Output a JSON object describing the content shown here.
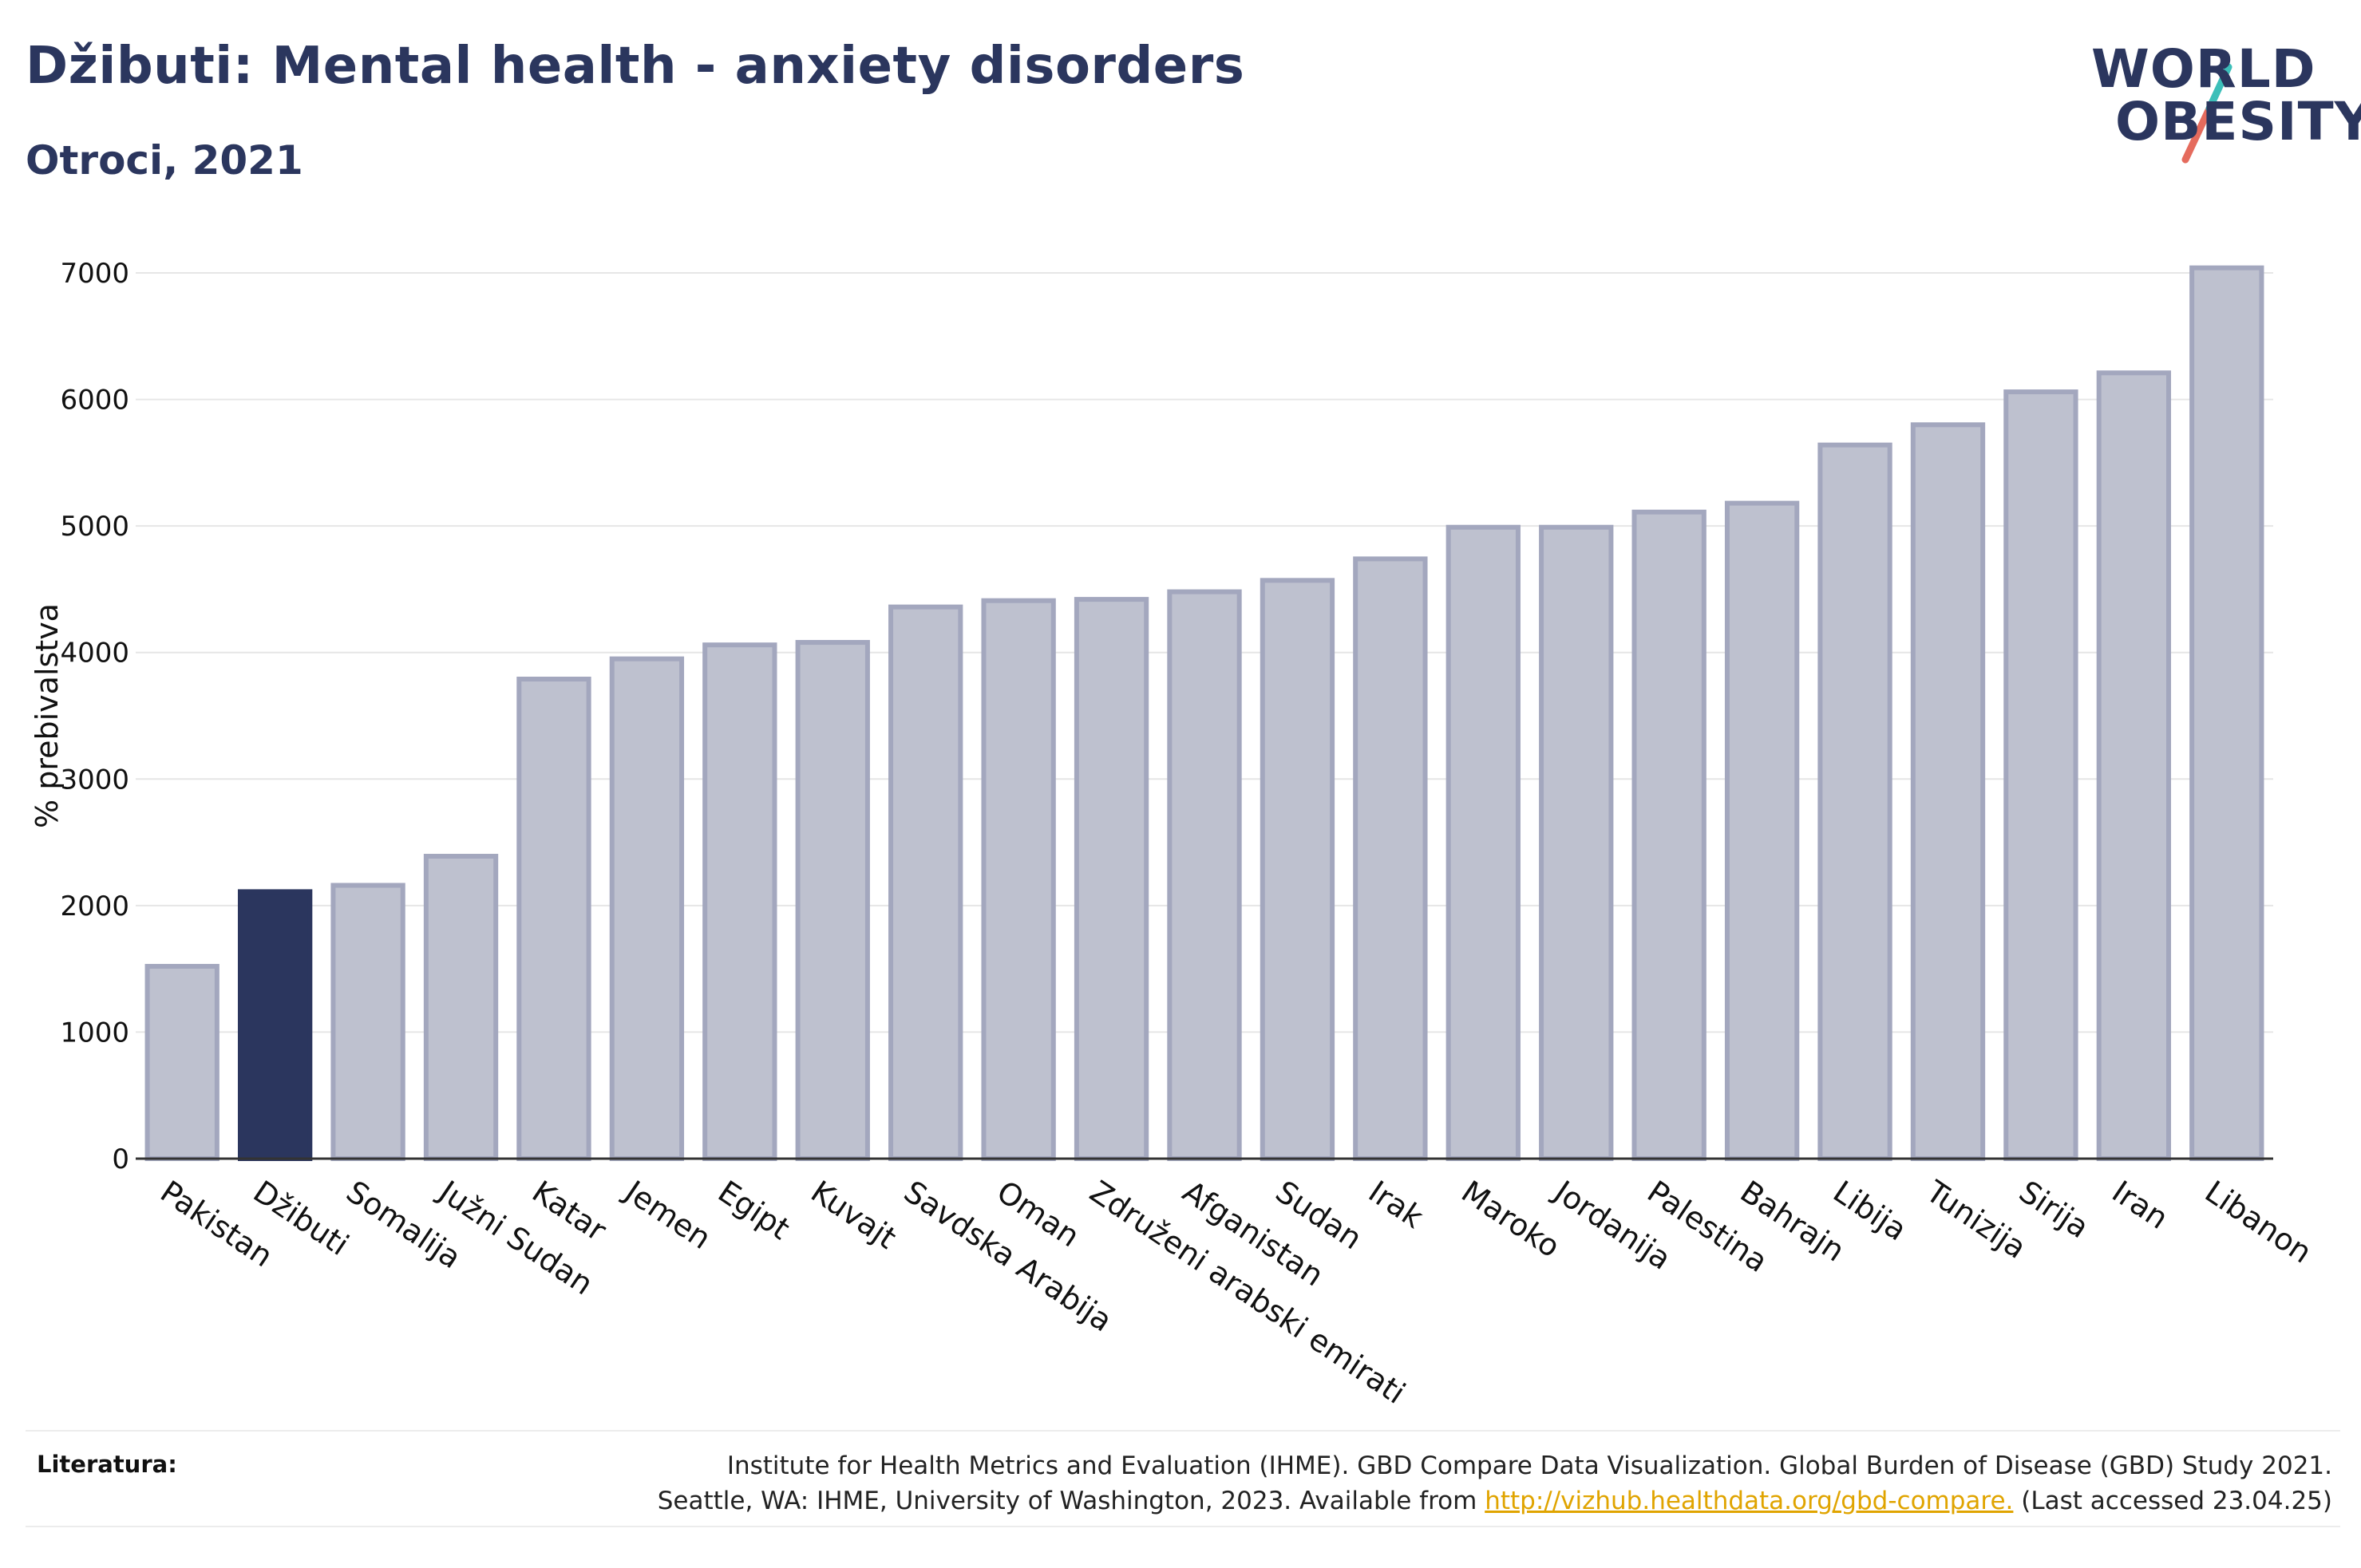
{
  "header": {
    "title": "Džibuti: Mental health - anxiety disorders",
    "subtitle": "Otroci, 2021"
  },
  "logo": {
    "line1": "WORLD",
    "line2": "OBESITY"
  },
  "colors": {
    "highlight": "#2b365e",
    "bar": "#bec1cf",
    "bar_stroke": "#a3a7be",
    "axis": "#333333",
    "grid": "#e6e6e6",
    "logo_teal": "#3cbfb9",
    "logo_coral": "#e56b5d",
    "link": "#e0a400"
  },
  "chart_data": {
    "type": "bar",
    "title": "Džibuti: Mental health - anxiety disorders",
    "subtitle": "Otroci, 2021",
    "ylabel": "% prebivalstva",
    "xlabel": "",
    "ylim": [
      0,
      7000
    ],
    "yticks": [
      "0",
      "1000",
      "2000",
      "3000",
      "4000",
      "5000",
      "6000",
      "7000"
    ],
    "grid": true,
    "highlight": "Džibuti",
    "categories": [
      "Pakistan",
      "Džibuti",
      "Somalija",
      "Južni Sudan",
      "Katar",
      "Jemen",
      "Egipt",
      "Kuvajt",
      "Savdska Arabija",
      "Oman",
      "Združeni arabski emirati",
      "Afganistan",
      "Sudan",
      "Irak",
      "Maroko",
      "Jordanija",
      "Palestina",
      "Bahrajn",
      "Libija",
      "Tunizija",
      "Sirija",
      "Iran",
      "Libanon"
    ],
    "values": [
      1520,
      2110,
      2160,
      2390,
      3790,
      3950,
      4060,
      4080,
      4360,
      4410,
      4420,
      4480,
      4570,
      4740,
      4990,
      4990,
      5110,
      5180,
      5640,
      5800,
      6060,
      6210,
      7040
    ]
  },
  "footer": {
    "label": "Literatura:",
    "ref_line1": "Institute for Health Metrics and Evaluation (IHME). GBD Compare Data Visualization. Global Burden of Disease (GBD) Study 2021.",
    "ref_line2_pre": "Seattle, WA: IHME, University of Washington, 2023. Available from ",
    "ref_link": "http://vizhub.healthdata.org/gbd-compare.",
    "ref_line2_post": " (Last accessed 23.04.25)"
  }
}
